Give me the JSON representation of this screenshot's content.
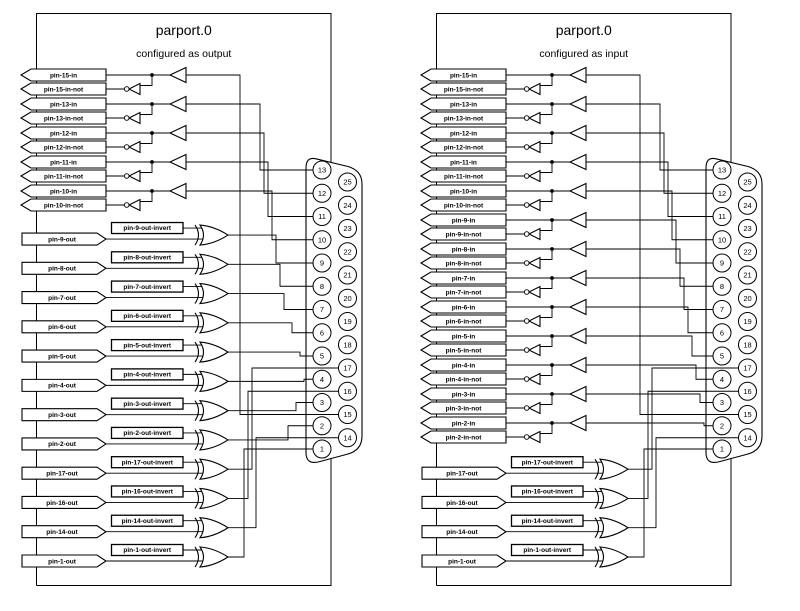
{
  "diagram": {
    "background": "#ffffff",
    "ink": "#000000"
  },
  "panels": [
    {
      "title": "parport.0",
      "subtitle": "configured as output",
      "in_pins": [
        {
          "pin": 15,
          "label": "pin-15-in",
          "not_label": "pin-15-in-not"
        },
        {
          "pin": 13,
          "label": "pin-13-in",
          "not_label": "pin-13-in-not"
        },
        {
          "pin": 12,
          "label": "pin-12-in",
          "not_label": "pin-12-in-not"
        },
        {
          "pin": 11,
          "label": "pin-11-in",
          "not_label": "pin-11-in-not"
        },
        {
          "pin": 10,
          "label": "pin-10-in",
          "not_label": "pin-10-in-not"
        }
      ],
      "out_pins": [
        {
          "pin": 9,
          "label": "pin-9-out",
          "invert_label": "pin-9-out-invert"
        },
        {
          "pin": 8,
          "label": "pin-8-out",
          "invert_label": "pin-8-out-invert"
        },
        {
          "pin": 7,
          "label": "pin-7-out",
          "invert_label": "pin-7-out-invert"
        },
        {
          "pin": 6,
          "label": "pin-6-out",
          "invert_label": "pin-6-out-invert"
        },
        {
          "pin": 5,
          "label": "pin-5-out",
          "invert_label": "pin-5-out-invert"
        },
        {
          "pin": 4,
          "label": "pin-4-out",
          "invert_label": "pin-4-out-invert"
        },
        {
          "pin": 3,
          "label": "pin-3-out",
          "invert_label": "pin-3-out-invert"
        },
        {
          "pin": 2,
          "label": "pin-2-out",
          "invert_label": "pin-2-out-invert"
        },
        {
          "pin": 17,
          "label": "pin-17-out",
          "invert_label": "pin-17-out-invert"
        },
        {
          "pin": 16,
          "label": "pin-16-out",
          "invert_label": "pin-16-out-invert"
        },
        {
          "pin": 14,
          "label": "pin-14-out",
          "invert_label": "pin-14-out-invert"
        },
        {
          "pin": 1,
          "label": "pin-1-out",
          "invert_label": "pin-1-out-invert"
        }
      ],
      "connector": {
        "left_column": [
          "13",
          "12",
          "11",
          "10",
          "9",
          "8",
          "7",
          "6",
          "5",
          "4",
          "3",
          "2",
          "1"
        ],
        "right_column": [
          "25",
          "24",
          "23",
          "22",
          "21",
          "20",
          "19",
          "18",
          "17",
          "16",
          "15",
          "14"
        ]
      }
    },
    {
      "title": "parport.0",
      "subtitle": "configured as input",
      "in_pins": [
        {
          "pin": 15,
          "label": "pin-15-in",
          "not_label": "pin-15-in-not"
        },
        {
          "pin": 13,
          "label": "pin-13-in",
          "not_label": "pin-13-in-not"
        },
        {
          "pin": 12,
          "label": "pin-12-in",
          "not_label": "pin-12-in-not"
        },
        {
          "pin": 11,
          "label": "pin-11-in",
          "not_label": "pin-11-in-not"
        },
        {
          "pin": 10,
          "label": "pin-10-in",
          "not_label": "pin-10-in-not"
        },
        {
          "pin": 9,
          "label": "pin-9-in",
          "not_label": "pin-9-in-not"
        },
        {
          "pin": 8,
          "label": "pin-8-in",
          "not_label": "pin-8-in-not"
        },
        {
          "pin": 7,
          "label": "pin-7-in",
          "not_label": "pin-7-in-not"
        },
        {
          "pin": 6,
          "label": "pin-6-in",
          "not_label": "pin-6-in-not"
        },
        {
          "pin": 5,
          "label": "pin-5-in",
          "not_label": "pin-5-in-not"
        },
        {
          "pin": 4,
          "label": "pin-4-in",
          "not_label": "pin-4-in-not"
        },
        {
          "pin": 3,
          "label": "pin-3-in",
          "not_label": "pin-3-in-not"
        },
        {
          "pin": 2,
          "label": "pin-2-in",
          "not_label": "pin-2-in-not"
        }
      ],
      "out_pins": [
        {
          "pin": 17,
          "label": "pin-17-out",
          "invert_label": "pin-17-out-invert"
        },
        {
          "pin": 16,
          "label": "pin-16-out",
          "invert_label": "pin-16-out-invert"
        },
        {
          "pin": 14,
          "label": "pin-14-out",
          "invert_label": "pin-14-out-invert"
        },
        {
          "pin": 1,
          "label": "pin-1-out",
          "invert_label": "pin-1-out-invert"
        }
      ],
      "connector": {
        "left_column": [
          "13",
          "12",
          "11",
          "10",
          "9",
          "8",
          "7",
          "6",
          "5",
          "4",
          "3",
          "2",
          "1"
        ],
        "right_column": [
          "25",
          "24",
          "23",
          "22",
          "21",
          "20",
          "19",
          "18",
          "17",
          "16",
          "15",
          "14"
        ]
      }
    }
  ]
}
